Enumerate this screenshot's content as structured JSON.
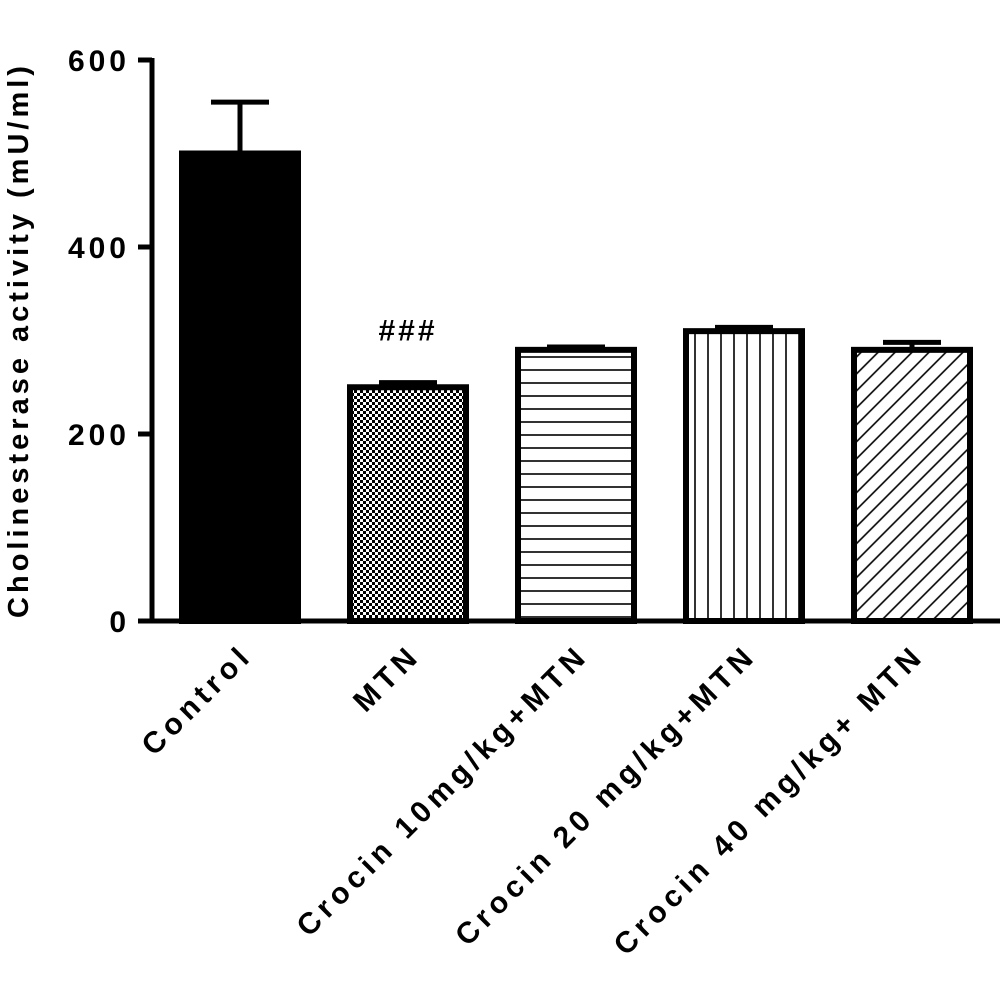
{
  "chart_data": {
    "type": "bar",
    "title": "",
    "xlabel": "",
    "ylabel": "Cholinesterase activity (mU/ml)",
    "ylim": [
      0,
      600
    ],
    "yticks": [
      0,
      200,
      400,
      600
    ],
    "grid": false,
    "categories": [
      "Control",
      "MTN",
      "Crocin 10mg/kg+MTN",
      "Crocin 20 mg/kg+MTN",
      "Crocin 40 mg/kg+ MTN"
    ],
    "values": [
      500,
      250,
      290,
      310,
      290
    ],
    "errors": [
      55,
      5,
      3,
      4,
      8
    ],
    "fills": [
      "solid-black",
      "checkered",
      "horizontal-lines",
      "vertical-lines",
      "diagonal-lines"
    ],
    "annotations": [
      {
        "category": "MTN",
        "text": "###"
      }
    ],
    "colors": {
      "bar_stroke": "#000000",
      "solid_fill": "#000000",
      "background": "#ffffff"
    }
  }
}
